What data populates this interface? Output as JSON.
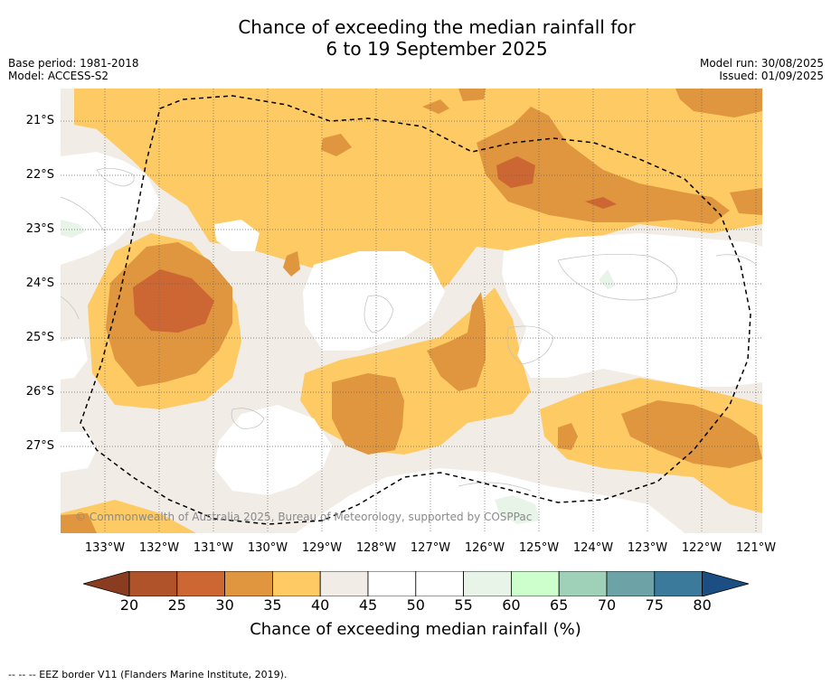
{
  "title": {
    "line1": "Chance of exceeding the median rainfall for",
    "line2": "6 to 19 September 2025"
  },
  "meta": {
    "base_period": "Base period: 1981-2018",
    "model": "Model: ACCESS-S2",
    "model_run": "Model run: 30/08/2025",
    "issued": "Issued: 01/09/2025"
  },
  "map": {
    "copyright": "© Commonwealth of Australia 2025, Bureau of Meteorology, supported by COSPPac",
    "lat_labels": [
      "21°S",
      "22°S",
      "23°S",
      "24°S",
      "25°S",
      "26°S",
      "27°S"
    ],
    "lon_labels": [
      "133°W",
      "132°W",
      "131°W",
      "130°W",
      "129°W",
      "128°W",
      "127°W",
      "126°W",
      "125°W",
      "124°W",
      "123°W",
      "122°W",
      "121°W"
    ],
    "colors": {
      "c20_25": "#b0532a",
      "c25_30": "#cc6632",
      "c30_35": "#e0953f",
      "c35_40": "#fdca64",
      "c40_45": "#f1ece6",
      "c45_55": "#ffffff",
      "c55_60": "#e8f4e8",
      "grid": "#555555",
      "eez": "#000000"
    }
  },
  "colorbar": {
    "ticks": [
      "20",
      "25",
      "30",
      "35",
      "40",
      "45",
      "50",
      "55",
      "60",
      "65",
      "70",
      "75",
      "80"
    ],
    "colors": [
      "#b0532a",
      "#cc6632",
      "#e0953f",
      "#fdca64",
      "#f1ece6",
      "#ffffff",
      "#ffffff",
      "#e8f4e8",
      "#ccffcc",
      "#9fd0b8",
      "#6da3a6",
      "#3c7a9b"
    ],
    "under_color": "#8a3c20",
    "over_color": "#1b4f84",
    "label": "Chance of exceeding median rainfall (%)"
  },
  "footer": "--  --  -- EEZ border V11 (Flanders Marine Institute, 2019)."
}
